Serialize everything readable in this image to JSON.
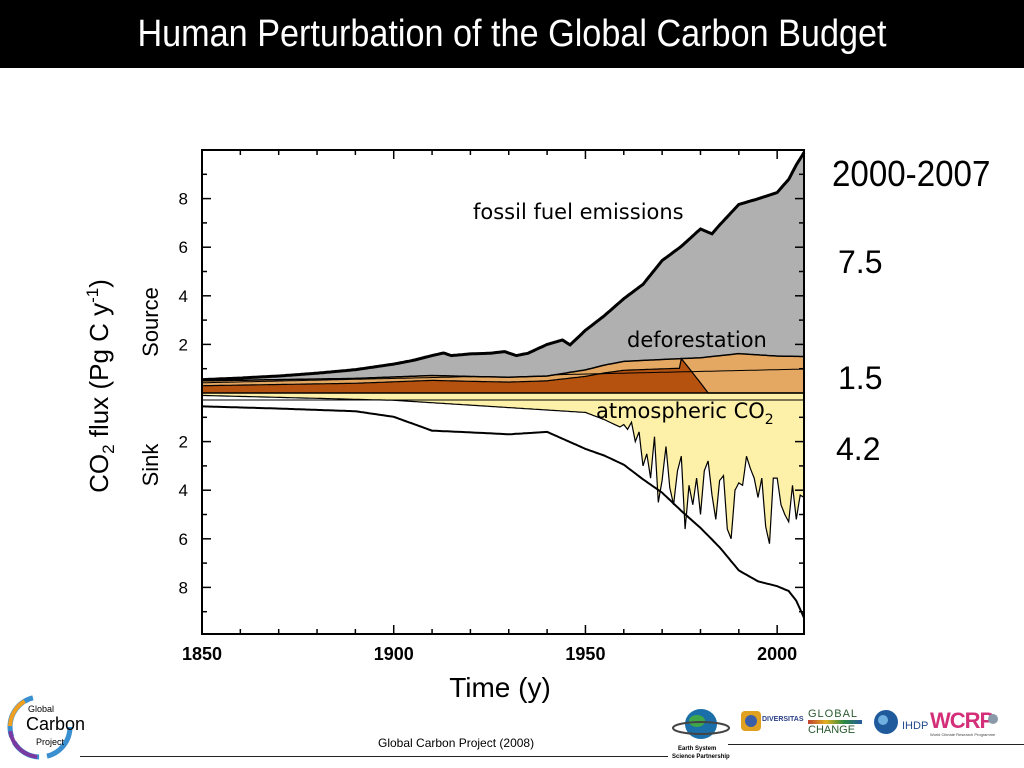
{
  "slide": {
    "title": "Human Perturbation of the Global Carbon Budget",
    "caption": "Global Carbon Project (2008)"
  },
  "stats": {
    "period": "2000-2007",
    "fossil": "7.5",
    "deforestation": "1.5",
    "atmospheric": "4.2"
  },
  "logos": {
    "gcp_line1": "Global",
    "gcp_line2": "Carbon",
    "gcp_line3": "Project",
    "essp_line1": "Earth System",
    "essp_line2": "Science Partnership",
    "diversitas": "DIVERSITAS",
    "igbp_top": "GLOBAL",
    "igbp_bottom": "CHANGE",
    "ihdp": "IHDP",
    "wcrp": "WCRP",
    "wcrp_sub": "World Climate Research Programme"
  },
  "chart_data": {
    "type": "area",
    "xlabel": "Time (y)",
    "ylabel": "CO2 flux (Pg C y-1)",
    "ylabel_parts": {
      "co": "CO",
      "sub2": "2",
      "mid": " flux (Pg C y",
      "sup": "-1",
      "end": ")"
    },
    "source_label": "Source",
    "sink_label": "Sink",
    "xlim": [
      1850,
      2007
    ],
    "ylim": [
      -10,
      10
    ],
    "x_ticks": [
      1850,
      1900,
      1950,
      2000
    ],
    "x_tick_labels": [
      "1850",
      "1900",
      "1950",
      "2000"
    ],
    "y_tick_values": [
      8,
      6,
      4,
      2,
      -2,
      -4,
      -6,
      -8
    ],
    "y_tick_labels": [
      "8",
      "6",
      "4",
      "2",
      "2",
      "4",
      "6",
      "8"
    ],
    "annotations": {
      "fossil": "fossil fuel emissions",
      "deforestation": "deforestation",
      "atmospheric": "atmospheric CO",
      "atmospheric_sub": "2"
    },
    "colors": {
      "fossil": "#b0b0b0",
      "deforestation": "#e5a862",
      "land_use_dark": "#b5520f",
      "atmospheric": "#fdf0a8",
      "sink": "#ffffff",
      "line": "#000000",
      "title_bar": "#000000"
    },
    "series": [
      {
        "name": "fossil fuel emissions",
        "x": [
          1850,
          1860,
          1870,
          1880,
          1890,
          1900,
          1905,
          1910,
          1913,
          1915,
          1920,
          1925,
          1929,
          1932,
          1935,
          1940,
          1944,
          1946,
          1950,
          1955,
          1960,
          1965,
          1970,
          1975,
          1980,
          1983,
          1985,
          1990,
          1995,
          2000,
          2003,
          2005,
          2007
        ],
        "values": [
          0.05,
          0.09,
          0.15,
          0.24,
          0.36,
          0.53,
          0.65,
          0.82,
          0.94,
          0.84,
          0.93,
          0.97,
          1.05,
          0.88,
          0.96,
          1.3,
          1.38,
          1.13,
          1.63,
          2.04,
          2.58,
          3.13,
          4.07,
          4.62,
          5.3,
          5.05,
          5.38,
          6.14,
          6.42,
          6.73,
          7.28,
          7.88,
          8.4
        ]
      },
      {
        "name": "deforestation",
        "x": [
          1850,
          1870,
          1890,
          1900,
          1910,
          1920,
          1930,
          1940,
          1950,
          1955,
          1960,
          1970,
          1980,
          1990,
          2000,
          2007
        ],
        "values": [
          0.5,
          0.55,
          0.6,
          0.66,
          0.72,
          0.68,
          0.65,
          0.7,
          0.95,
          1.15,
          1.3,
          1.38,
          1.45,
          1.62,
          1.52,
          1.5
        ]
      },
      {
        "name": "atmospheric CO2",
        "x": [
          1850,
          1900,
          1930,
          1950,
          1955,
          1959,
          1960,
          1961,
          1962,
          1963,
          1964,
          1965,
          1966,
          1967,
          1968,
          1969,
          1970,
          1971,
          1972,
          1973,
          1974,
          1975,
          1976,
          1977,
          1978,
          1979,
          1980,
          1981,
          1982,
          1983,
          1984,
          1985,
          1986,
          1987,
          1988,
          1989,
          1990,
          1991,
          1992,
          1993,
          1994,
          1995,
          1996,
          1997,
          1998,
          1999,
          2000,
          2001,
          2002,
          2003,
          2004,
          2005,
          2006,
          2007
        ],
        "values": [
          0.1,
          0.3,
          0.6,
          0.8,
          1.1,
          1.4,
          1.3,
          1.5,
          1.2,
          2.0,
          1.6,
          3.0,
          2.5,
          3.5,
          1.8,
          4.5,
          3.6,
          2.2,
          3.9,
          4.6,
          3.2,
          2.6,
          5.6,
          3.8,
          4.6,
          3.5,
          5.0,
          3.2,
          2.8,
          4.2,
          5.2,
          3.6,
          3.4,
          5.6,
          6.0,
          4.0,
          3.7,
          3.8,
          2.6,
          3.1,
          3.5,
          4.3,
          3.5,
          5.5,
          6.2,
          3.5,
          3.5,
          4.6,
          5.0,
          5.3,
          3.8,
          5.2,
          4.2,
          4.3
        ]
      },
      {
        "name": "total sinks",
        "x": [
          1850,
          1870,
          1890,
          1900,
          1910,
          1920,
          1930,
          1940,
          1950,
          1955,
          1960,
          1965,
          1970,
          1975,
          1980,
          1985,
          1990,
          1995,
          2000,
          2003,
          2005,
          2007
        ],
        "values": [
          0.55,
          0.64,
          0.75,
          0.98,
          1.55,
          1.62,
          1.7,
          1.6,
          2.3,
          2.58,
          2.95,
          3.55,
          4.1,
          4.85,
          5.55,
          6.35,
          7.3,
          7.75,
          7.95,
          8.15,
          8.55,
          9.25
        ]
      }
    ]
  }
}
